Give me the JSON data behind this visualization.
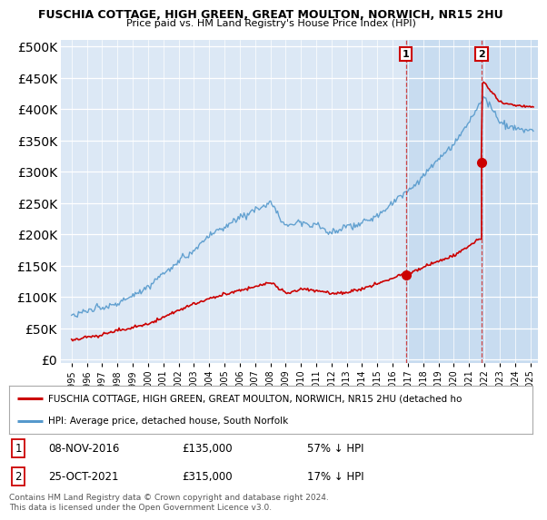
{
  "title1": "FUSCHIA COTTAGE, HIGH GREEN, GREAT MOULTON, NORWICH, NR15 2HU",
  "title2": "Price paid vs. HM Land Registry's House Price Index (HPI)",
  "plot_bg_color": "#dce8f5",
  "grid_color": "#b8cce0",
  "shade_color": "#c8dcf0",
  "ylim": [
    0,
    500000
  ],
  "yticks": [
    0,
    50000,
    100000,
    150000,
    200000,
    250000,
    300000,
    350000,
    400000,
    450000,
    500000
  ],
  "sale1_date": "08-NOV-2016",
  "sale1_price": 135000,
  "sale1_hpi_pct": "57% ↓ HPI",
  "sale1_year": 2016.86,
  "sale2_date": "25-OCT-2021",
  "sale2_price": 315000,
  "sale2_hpi_pct": "17% ↓ HPI",
  "sale2_year": 2021.82,
  "legend_line1": "FUSCHIA COTTAGE, HIGH GREEN, GREAT MOULTON, NORWICH, NR15 2HU (detached ho",
  "legend_line2": "HPI: Average price, detached house, South Norfolk",
  "footer": "Contains HM Land Registry data © Crown copyright and database right 2024.\nThis data is licensed under the Open Government Licence v3.0.",
  "red_line_color": "#cc0000",
  "blue_line_color": "#5599cc"
}
